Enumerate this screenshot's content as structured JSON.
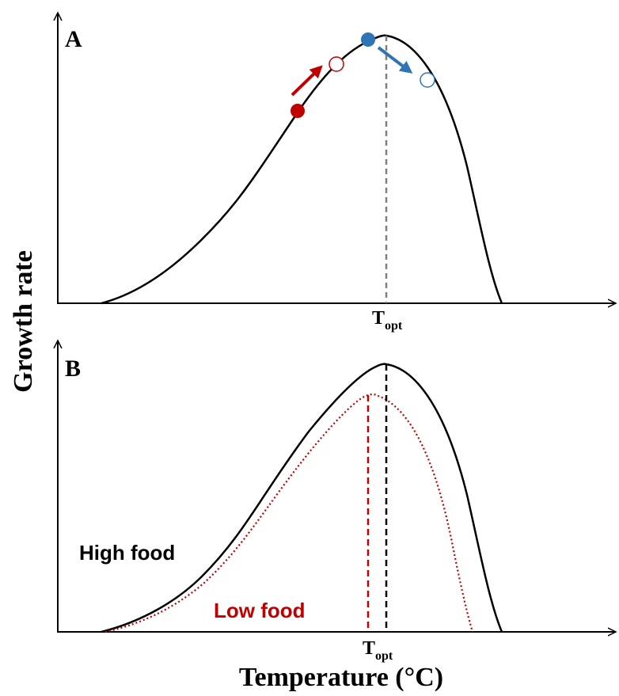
{
  "figure": {
    "y_axis_label": "Growth rate",
    "x_axis_label": "Temperature (°C)",
    "colors": {
      "curve": "#000000",
      "warming_point": "#c00000",
      "cooling_point": "#2e75b6",
      "low_food": "#c00000",
      "t_opt_line_a": "#7f7f7f",
      "t_opt_line_b_high": "#000000",
      "t_opt_line_b_low": "#c00000"
    }
  },
  "panel_a": {
    "label": "A",
    "topt_main": "T",
    "topt_sub": "opt"
  },
  "panel_b": {
    "label": "B",
    "high_food_label": "High food",
    "low_food_label": "Low food",
    "topt_main": "T",
    "topt_sub": "opt"
  }
}
